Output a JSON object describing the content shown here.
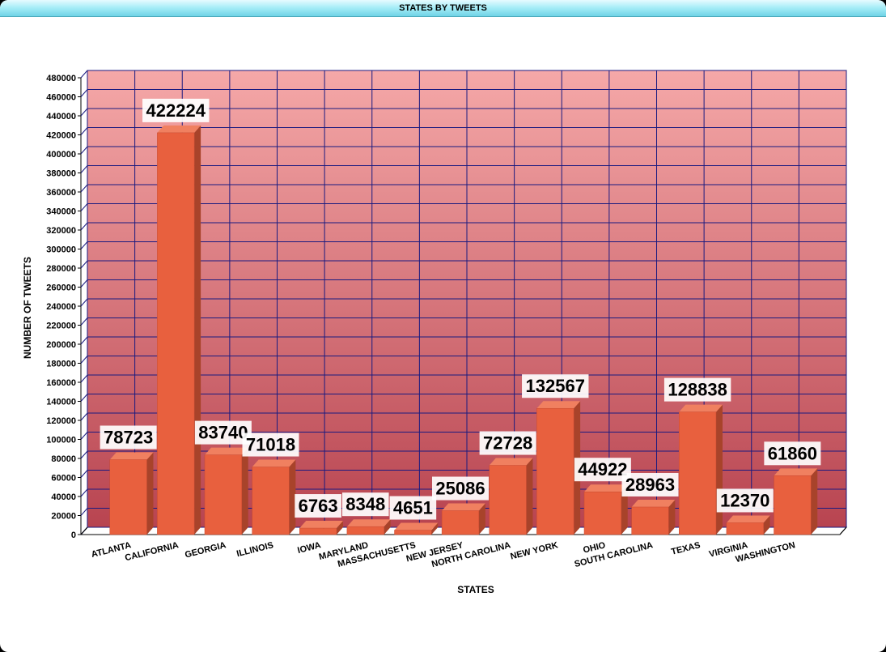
{
  "window": {
    "title": "STATES BY TWEETS"
  },
  "chart_data": {
    "type": "bar",
    "title": "STATES BY TWEETS",
    "xlabel": "STATES",
    "ylabel": "NUMBER OF TWEETS",
    "ylim": [
      0,
      480000
    ],
    "ytick_step": 20000,
    "grid": true,
    "categories": [
      "ATLANTA",
      "CALIFORNIA",
      "GEORGIA",
      "ILLINOIS",
      "IOWA",
      "MARYLAND",
      "MASSACHUSETTS",
      "NEW JERSEY",
      "NORTH CAROLINA",
      "NEW YORK",
      "OHIO",
      "SOUTH CAROLINA",
      "TEXAS",
      "VIRGINIA",
      "WASHINGTON"
    ],
    "values": [
      78723,
      422224,
      83740,
      71018,
      6763,
      8348,
      4651,
      25086,
      72728,
      132567,
      44922,
      28963,
      128838,
      12370,
      61860
    ],
    "colors": {
      "bar_front": "#e8603e",
      "bar_side": "#a8432a",
      "bar_top": "#f08060",
      "background_top": "#f5a8a8",
      "background_bottom": "#b84450",
      "grid": "#1a1a80"
    }
  }
}
